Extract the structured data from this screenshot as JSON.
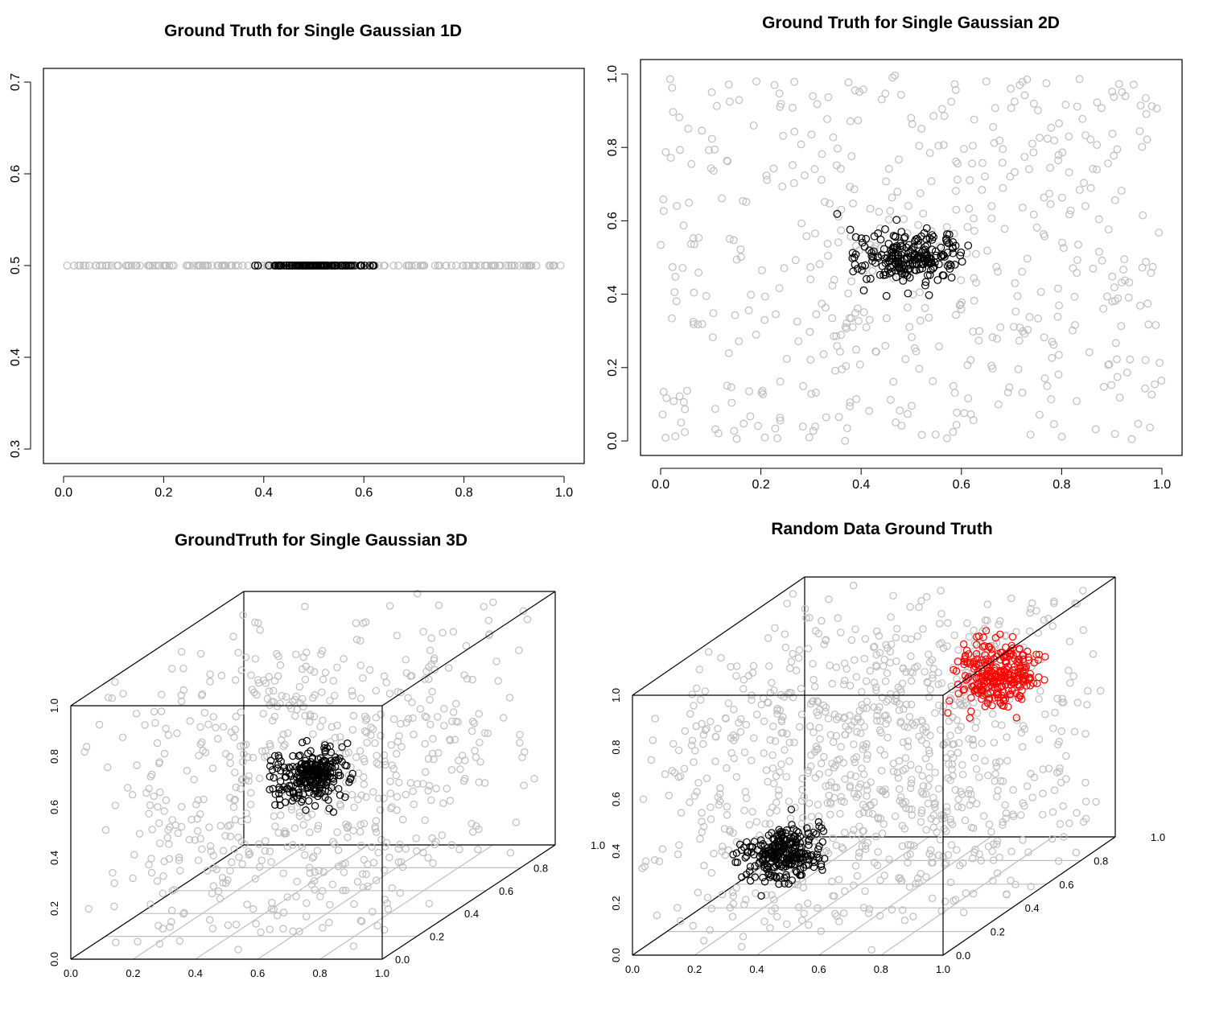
{
  "colors": {
    "background": "#bebebe",
    "cluster": "#000000",
    "cluster2": "#ff0000",
    "frame": "#000000",
    "grid": "#bfbfbf"
  },
  "chart_data": [
    {
      "type": "scatter",
      "title": "Ground Truth for Single Gaussian 1D",
      "xlabel": "",
      "ylabel": "",
      "xlim": [
        0.0,
        1.0
      ],
      "ylim": [
        0.3,
        0.7
      ],
      "x_ticks": [
        "0.0",
        "0.2",
        "0.4",
        "0.6",
        "0.8",
        "1.0"
      ],
      "y_ticks": [
        "0.3",
        "0.4",
        "0.5",
        "0.6",
        "0.7"
      ],
      "legend": "none",
      "series": [
        {
          "role": "background",
          "color": "#bebebe",
          "distribution": "uniform",
          "x_range": [
            0.0,
            1.0
          ],
          "y_value": 0.5,
          "n": 200
        },
        {
          "role": "cluster",
          "color": "#000000",
          "distribution": "gaussian",
          "x_center": 0.5,
          "x_sd": 0.05,
          "y_value": 0.5,
          "n": 120
        }
      ]
    },
    {
      "type": "scatter",
      "title": "Ground Truth for Single Gaussian 2D",
      "xlabel": "",
      "ylabel": "",
      "xlim": [
        0.0,
        1.0
      ],
      "ylim": [
        0.0,
        1.0
      ],
      "x_ticks": [
        "0.0",
        "0.2",
        "0.4",
        "0.6",
        "0.8",
        "1.0"
      ],
      "y_ticks": [
        "0.0",
        "0.2",
        "0.4",
        "0.6",
        "0.8",
        "1.0"
      ],
      "legend": "none",
      "series": [
        {
          "role": "background",
          "color": "#bebebe",
          "distribution": "uniform",
          "x_range": [
            0.0,
            1.0
          ],
          "y_range": [
            0.0,
            1.0
          ],
          "n": 520
        },
        {
          "role": "cluster",
          "color": "#000000",
          "distribution": "gaussian",
          "center": [
            0.5,
            0.5
          ],
          "sd": 0.05,
          "n": 220
        }
      ]
    },
    {
      "type": "scatter3d",
      "title": "GroundTruth for Single Gaussian 3D",
      "x_ticks": [
        "0.0",
        "0.2",
        "0.4",
        "0.6",
        "0.8",
        "1.0"
      ],
      "y_ticks": [
        "0.0",
        "0.2",
        "0.4",
        "0.6",
        "0.8",
        "1.0"
      ],
      "z_ticks": [
        "0.0",
        "0.2",
        "0.4",
        "0.6",
        "0.8",
        "1.0"
      ],
      "xlim": [
        0.0,
        1.0
      ],
      "ylim": [
        0.0,
        1.0
      ],
      "zlim": [
        0.0,
        1.0
      ],
      "legend": "none",
      "series": [
        {
          "role": "background",
          "color": "#bebebe",
          "distribution": "uniform",
          "range": [
            0.0,
            1.0
          ],
          "n": 650
        },
        {
          "role": "cluster",
          "color": "#000000",
          "distribution": "gaussian",
          "center": [
            0.5,
            0.5,
            0.5
          ],
          "sd": 0.05,
          "n": 260
        }
      ]
    },
    {
      "type": "scatter3d",
      "title": "Random Data Ground Truth",
      "x_ticks": [
        "0.0",
        "0.2",
        "0.4",
        "0.6",
        "0.8",
        "1.0"
      ],
      "y_ticks": [
        "0.0",
        "0.2",
        "0.4",
        "0.6",
        "0.8",
        "1.0"
      ],
      "z_ticks": [
        "0.0",
        "0.2",
        "0.4",
        "0.6",
        "0.8",
        "1.0"
      ],
      "xlim": [
        0.0,
        1.0
      ],
      "ylim": [
        0.0,
        1.0
      ],
      "zlim": [
        0.0,
        1.0
      ],
      "legend": "none",
      "series": [
        {
          "role": "background",
          "color": "#bebebe",
          "distribution": "uniform",
          "range": [
            0.0,
            1.0
          ],
          "n": 950
        },
        {
          "role": "cluster",
          "color": "#000000",
          "distribution": "gaussian",
          "center": [
            0.38,
            0.2,
            0.3
          ],
          "sd": 0.05,
          "n": 260
        },
        {
          "role": "cluster",
          "color": "#ff0000",
          "distribution": "gaussian",
          "center": [
            0.72,
            0.82,
            0.7
          ],
          "sd": 0.06,
          "n": 280
        }
      ]
    }
  ]
}
